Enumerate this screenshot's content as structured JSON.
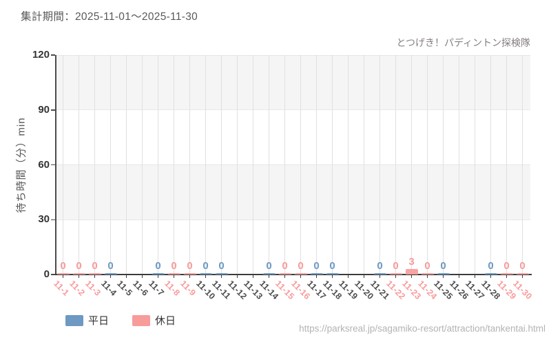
{
  "header": {
    "period_label": "集計期間：2025-11-01～2025-11-30"
  },
  "chart": {
    "subtitle": "とつげき！パディントン探検隊"
  },
  "chart_data": {
    "type": "bar",
    "title": "とつげき！パディントン探検隊 待ち時間 集計期間 2025-11-01～2025-11-30",
    "xlabel": "",
    "ylabel": "待ち時間（分）min",
    "ylim": [
      0,
      120
    ],
    "yticks": [
      0,
      30,
      60,
      90,
      120
    ],
    "grid": true,
    "legend_position": "bottom-left",
    "band_colors": [
      "#f5f5f5",
      "#ffffff"
    ],
    "categories": [
      "11-1",
      "11-2",
      "11-3",
      "11-4",
      "11-5",
      "11-6",
      "11-7",
      "11-8",
      "11-9",
      "11-10",
      "11-11",
      "11-12",
      "11-13",
      "11-14",
      "11-15",
      "11-16",
      "11-17",
      "11-18",
      "11-19",
      "11-20",
      "11-21",
      "11-22",
      "11-23",
      "11-24",
      "11-25",
      "11-26",
      "11-27",
      "11-28",
      "11-29",
      "11-30"
    ],
    "day_types": [
      "holiday",
      "holiday",
      "holiday",
      "weekday",
      "weekday",
      "weekday",
      "weekday",
      "holiday",
      "holiday",
      "weekday",
      "weekday",
      "weekday",
      "weekday",
      "weekday",
      "holiday",
      "holiday",
      "weekday",
      "weekday",
      "weekday",
      "weekday",
      "weekday",
      "holiday",
      "holiday",
      "holiday",
      "weekday",
      "weekday",
      "weekday",
      "weekday",
      "holiday",
      "holiday"
    ],
    "series": [
      {
        "name": "平日",
        "color": "#6d99c2",
        "values": [
          null,
          null,
          null,
          0,
          null,
          null,
          0,
          null,
          null,
          0,
          0,
          null,
          null,
          0,
          null,
          null,
          0,
          0,
          null,
          null,
          0,
          null,
          null,
          null,
          0,
          null,
          null,
          0,
          null,
          null
        ]
      },
      {
        "name": "休日",
        "color": "#f89b9b",
        "values": [
          0,
          0,
          0,
          null,
          null,
          null,
          null,
          0,
          0,
          null,
          null,
          null,
          null,
          null,
          0,
          0,
          null,
          null,
          null,
          null,
          null,
          0,
          3,
          0,
          null,
          null,
          null,
          null,
          0,
          0
        ]
      }
    ],
    "label_colors": {
      "weekday": "#4d4d4d",
      "holiday": "#fa9a9a"
    },
    "axis_colors": {
      "ytick": "#333333",
      "line": "#3c3c3c"
    }
  },
  "legend": {
    "items": [
      {
        "label": "平日",
        "color": "#6d99c2"
      },
      {
        "label": "休日",
        "color": "#f89b9b"
      }
    ]
  },
  "footer": {
    "url": "https://parksreal.jp/sagamiko-resort/attraction/tankentai.html"
  }
}
